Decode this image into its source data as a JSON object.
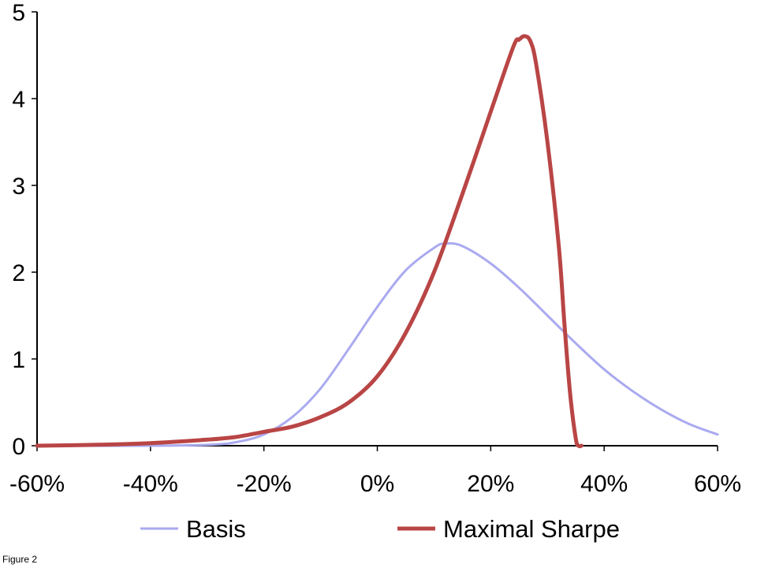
{
  "chart_data": {
    "type": "line",
    "xlabel": "",
    "ylabel": "",
    "xlim": [
      -0.6,
      0.6
    ],
    "ylim": [
      0,
      5
    ],
    "x_ticks": [
      -0.6,
      -0.4,
      -0.2,
      0,
      0.2,
      0.4,
      0.6
    ],
    "x_tick_labels": [
      "-60%",
      "-40%",
      "-20%",
      "0%",
      "20%",
      "40%",
      "60%"
    ],
    "y_ticks": [
      0,
      1,
      2,
      3,
      4,
      5
    ],
    "y_tick_labels": [
      "0",
      "1",
      "2",
      "3",
      "4",
      "5"
    ],
    "grid": false,
    "legend_position": "bottom",
    "series": [
      {
        "name": "Basis",
        "color": "#aaaaf0",
        "points": [
          [
            -0.6,
            0
          ],
          [
            -0.4,
            0
          ],
          [
            -0.3,
            0.01
          ],
          [
            -0.25,
            0.04
          ],
          [
            -0.2,
            0.13
          ],
          [
            -0.15,
            0.33
          ],
          [
            -0.1,
            0.66
          ],
          [
            -0.05,
            1.12
          ],
          [
            0,
            1.6
          ],
          [
            0.05,
            2.02
          ],
          [
            0.1,
            2.28
          ],
          [
            0.12,
            2.33
          ],
          [
            0.15,
            2.3
          ],
          [
            0.2,
            2.1
          ],
          [
            0.25,
            1.82
          ],
          [
            0.3,
            1.5
          ],
          [
            0.35,
            1.18
          ],
          [
            0.4,
            0.88
          ],
          [
            0.45,
            0.63
          ],
          [
            0.5,
            0.42
          ],
          [
            0.55,
            0.25
          ],
          [
            0.6,
            0.13
          ]
        ]
      },
      {
        "name": "Maximal Sharpe",
        "color": "#b94545",
        "points": [
          [
            -0.6,
            0.0
          ],
          [
            -0.5,
            0.01
          ],
          [
            -0.4,
            0.03
          ],
          [
            -0.3,
            0.07
          ],
          [
            -0.25,
            0.1
          ],
          [
            -0.2,
            0.16
          ],
          [
            -0.15,
            0.22
          ],
          [
            -0.1,
            0.33
          ],
          [
            -0.05,
            0.5
          ],
          [
            0,
            0.8
          ],
          [
            0.05,
            1.3
          ],
          [
            0.1,
            2.0
          ],
          [
            0.15,
            2.9
          ],
          [
            0.2,
            3.85
          ],
          [
            0.24,
            4.6
          ],
          [
            0.25,
            4.68
          ],
          [
            0.26,
            4.72
          ],
          [
            0.27,
            4.66
          ],
          [
            0.28,
            4.4
          ],
          [
            0.3,
            3.5
          ],
          [
            0.32,
            2.3
          ],
          [
            0.33,
            1.4
          ],
          [
            0.34,
            0.6
          ],
          [
            0.35,
            0.08
          ],
          [
            0.355,
            0.0
          ],
          [
            0.36,
            0.0
          ]
        ]
      }
    ]
  },
  "legend": {
    "basis_label": "Basis",
    "sharpe_label": "Maximal Sharpe"
  },
  "caption": "Figure 2"
}
